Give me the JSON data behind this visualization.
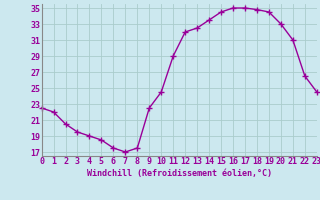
{
  "x": [
    0,
    1,
    2,
    3,
    4,
    5,
    6,
    7,
    8,
    9,
    10,
    11,
    12,
    13,
    14,
    15,
    16,
    17,
    18,
    19,
    20,
    21,
    22,
    23
  ],
  "y": [
    22.5,
    22.0,
    20.5,
    19.5,
    19.0,
    18.5,
    17.5,
    17.0,
    17.5,
    22.5,
    24.5,
    29.0,
    32.0,
    32.5,
    33.5,
    34.5,
    35.0,
    35.0,
    34.8,
    34.5,
    33.0,
    31.0,
    26.5,
    24.5
  ],
  "line_color": "#990099",
  "marker": "+",
  "marker_size": 4,
  "marker_lw": 1.0,
  "line_width": 1.0,
  "bg_color": "#cce8ef",
  "grid_color": "#aacccc",
  "xlabel": "Windchill (Refroidissement éolien,°C)",
  "xlabel_color": "#990099",
  "xlabel_fontsize": 6.0,
  "tick_fontsize": 6.0,
  "xlim": [
    0,
    23
  ],
  "ylim": [
    16.5,
    35.5
  ],
  "yticks": [
    17,
    19,
    21,
    23,
    25,
    27,
    29,
    31,
    33,
    35
  ],
  "xticks": [
    0,
    1,
    2,
    3,
    4,
    5,
    6,
    7,
    8,
    9,
    10,
    11,
    12,
    13,
    14,
    15,
    16,
    17,
    18,
    19,
    20,
    21,
    22,
    23
  ]
}
